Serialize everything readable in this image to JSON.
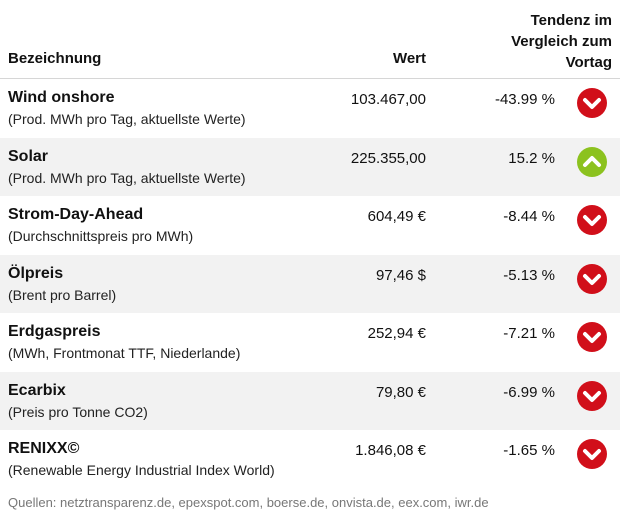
{
  "header": {
    "name": "Bezeichnung",
    "value": "Wert",
    "trend_lines": [
      "Tendenz im",
      "Vergleich zum",
      "Vortag"
    ]
  },
  "colors": {
    "down": "#d10f1a",
    "up": "#8cc21f",
    "row_alt": "#f2f2f2",
    "footer": "#777777"
  },
  "rows": [
    {
      "name": "Wind onshore",
      "desc": "(Prod. MWh pro Tag, aktuellste Werte)",
      "value": "103.467,00",
      "pct": "-43.99 %",
      "trend": "down",
      "icon": "chevron-down-icon"
    },
    {
      "name": "Solar",
      "desc": "(Prod. MWh pro Tag, aktuellste Werte)",
      "value": "225.355,00",
      "pct": "15.2 %",
      "trend": "up",
      "icon": "chevron-up-icon"
    },
    {
      "name": "Strom-Day-Ahead",
      "desc": "(Durchschnittspreis pro MWh)",
      "value": "604,49 €",
      "pct": "-8.44 %",
      "trend": "down",
      "icon": "chevron-down-icon"
    },
    {
      "name": "Ölpreis",
      "desc": "(Brent pro Barrel)",
      "value": "97,46 $",
      "pct": "-5.13 %",
      "trend": "down",
      "icon": "chevron-down-icon"
    },
    {
      "name": "Erdgaspreis",
      "desc": "(MWh, Frontmonat TTF, Niederlande)",
      "value": "252,94 €",
      "pct": "-7.21 %",
      "trend": "down",
      "icon": "chevron-down-icon"
    },
    {
      "name": "Ecarbix",
      "desc": "(Preis pro Tonne CO2)",
      "value": "79,80 €",
      "pct": "-6.99 %",
      "trend": "down",
      "icon": "chevron-down-icon"
    },
    {
      "name": "RENIXX©",
      "desc": "(Renewable Energy Industrial Index World)",
      "value": "1.846,08 €",
      "pct": "-1.65 %",
      "trend": "down",
      "icon": "chevron-down-icon"
    }
  ],
  "footer": "Quellen: netztransparenz.de, epexspot.com, boerse.de, onvista.de, eex.com, iwr.de"
}
